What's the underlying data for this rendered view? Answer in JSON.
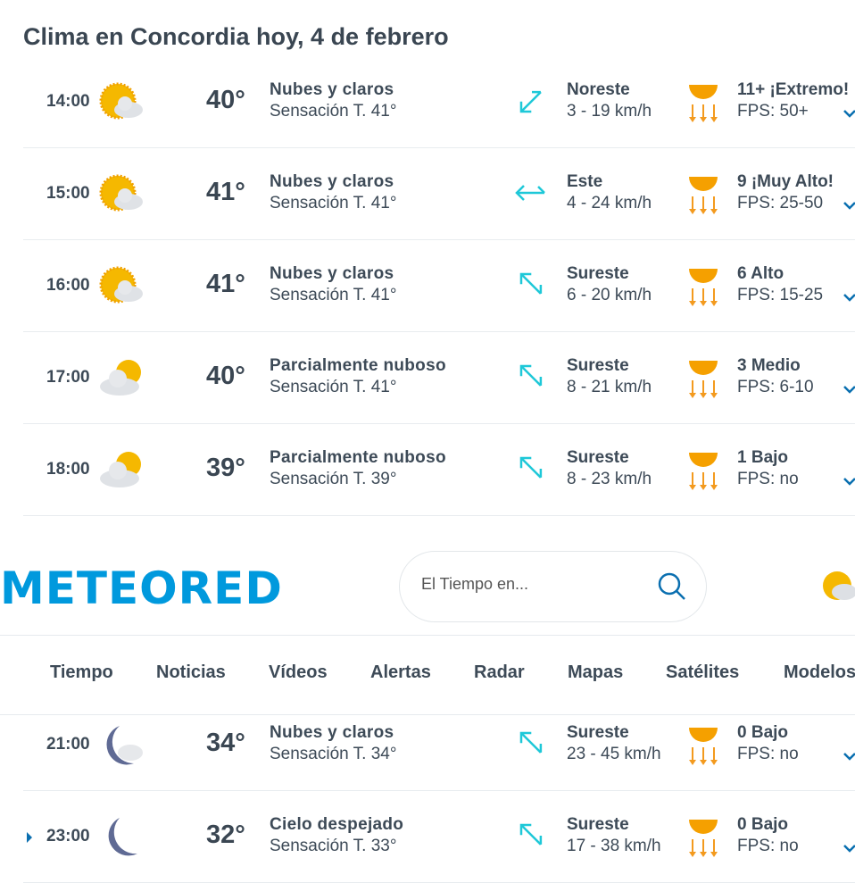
{
  "title": "Clima en Concordia hoy, 4 de febrero",
  "rows": [
    {
      "time": "14:00",
      "icon": "sun-cloud-icon",
      "temp": "40°",
      "desc": "Nubes y claros",
      "feel": "Sensación T. 41°",
      "wind_dir": "Noreste",
      "wind_speed": "3 - 19 km/h",
      "wind_rotation": 225,
      "uv": "11+ ¡Extremo!",
      "fps": "FPS: 50+"
    },
    {
      "time": "15:00",
      "icon": "sun-cloud-icon",
      "temp": "41°",
      "desc": "Nubes y claros",
      "feel": "Sensación T. 41°",
      "wind_dir": "Este",
      "wind_speed": "4 - 24 km/h",
      "wind_rotation": 270,
      "uv": "9 ¡Muy Alto!",
      "fps": "FPS: 25-50"
    },
    {
      "time": "16:00",
      "icon": "sun-cloud-icon",
      "temp": "41°",
      "desc": "Nubes y claros",
      "feel": "Sensación T. 41°",
      "wind_dir": "Sureste",
      "wind_speed": "6 - 20 km/h",
      "wind_rotation": 315,
      "uv": "6 Alto",
      "fps": "FPS: 15-25"
    },
    {
      "time": "17:00",
      "icon": "cloud-sun-icon",
      "temp": "40°",
      "desc": "Parcialmente nuboso",
      "feel": "Sensación T. 41°",
      "wind_dir": "Sureste",
      "wind_speed": "8 - 21 km/h",
      "wind_rotation": 315,
      "uv": "3 Medio",
      "fps": "FPS: 6-10"
    },
    {
      "time": "18:00",
      "icon": "cloud-sun-icon",
      "temp": "39°",
      "desc": "Parcialmente nuboso",
      "feel": "Sensación T. 39°",
      "wind_dir": "Sureste",
      "wind_speed": "8 - 23 km/h",
      "wind_rotation": 315,
      "uv": "1 Bajo",
      "fps": "FPS: no"
    }
  ],
  "header": {
    "logo": "METEORED",
    "search_placeholder": "El Tiempo en..."
  },
  "nav": [
    "Tiempo",
    "Noticias",
    "Vídeos",
    "Alertas",
    "Radar",
    "Mapas",
    "Satélites",
    "Modelos"
  ],
  "rows2": [
    {
      "time": "21:00",
      "icon": "moon-cloud-icon",
      "temp": "34°",
      "desc": "Nubes y claros",
      "feel": "Sensación T. 34°",
      "wind_dir": "Sureste",
      "wind_speed": "23 - 45 km/h",
      "wind_rotation": 315,
      "uv": "0 Bajo",
      "fps": "FPS: no"
    },
    {
      "time": "23:00",
      "icon": "moon-icon",
      "temp": "32°",
      "desc": "Cielo despejado",
      "feel": "Sensación T. 33°",
      "wind_dir": "Sureste",
      "wind_speed": "17 - 38 km/h",
      "wind_rotation": 315,
      "uv": "0 Bajo",
      "fps": "FPS: no"
    }
  ],
  "colors": {
    "accent": "#0099dd",
    "wind": "#1ec8d8",
    "uv": "#f39a1e",
    "text": "#3d4a57"
  }
}
